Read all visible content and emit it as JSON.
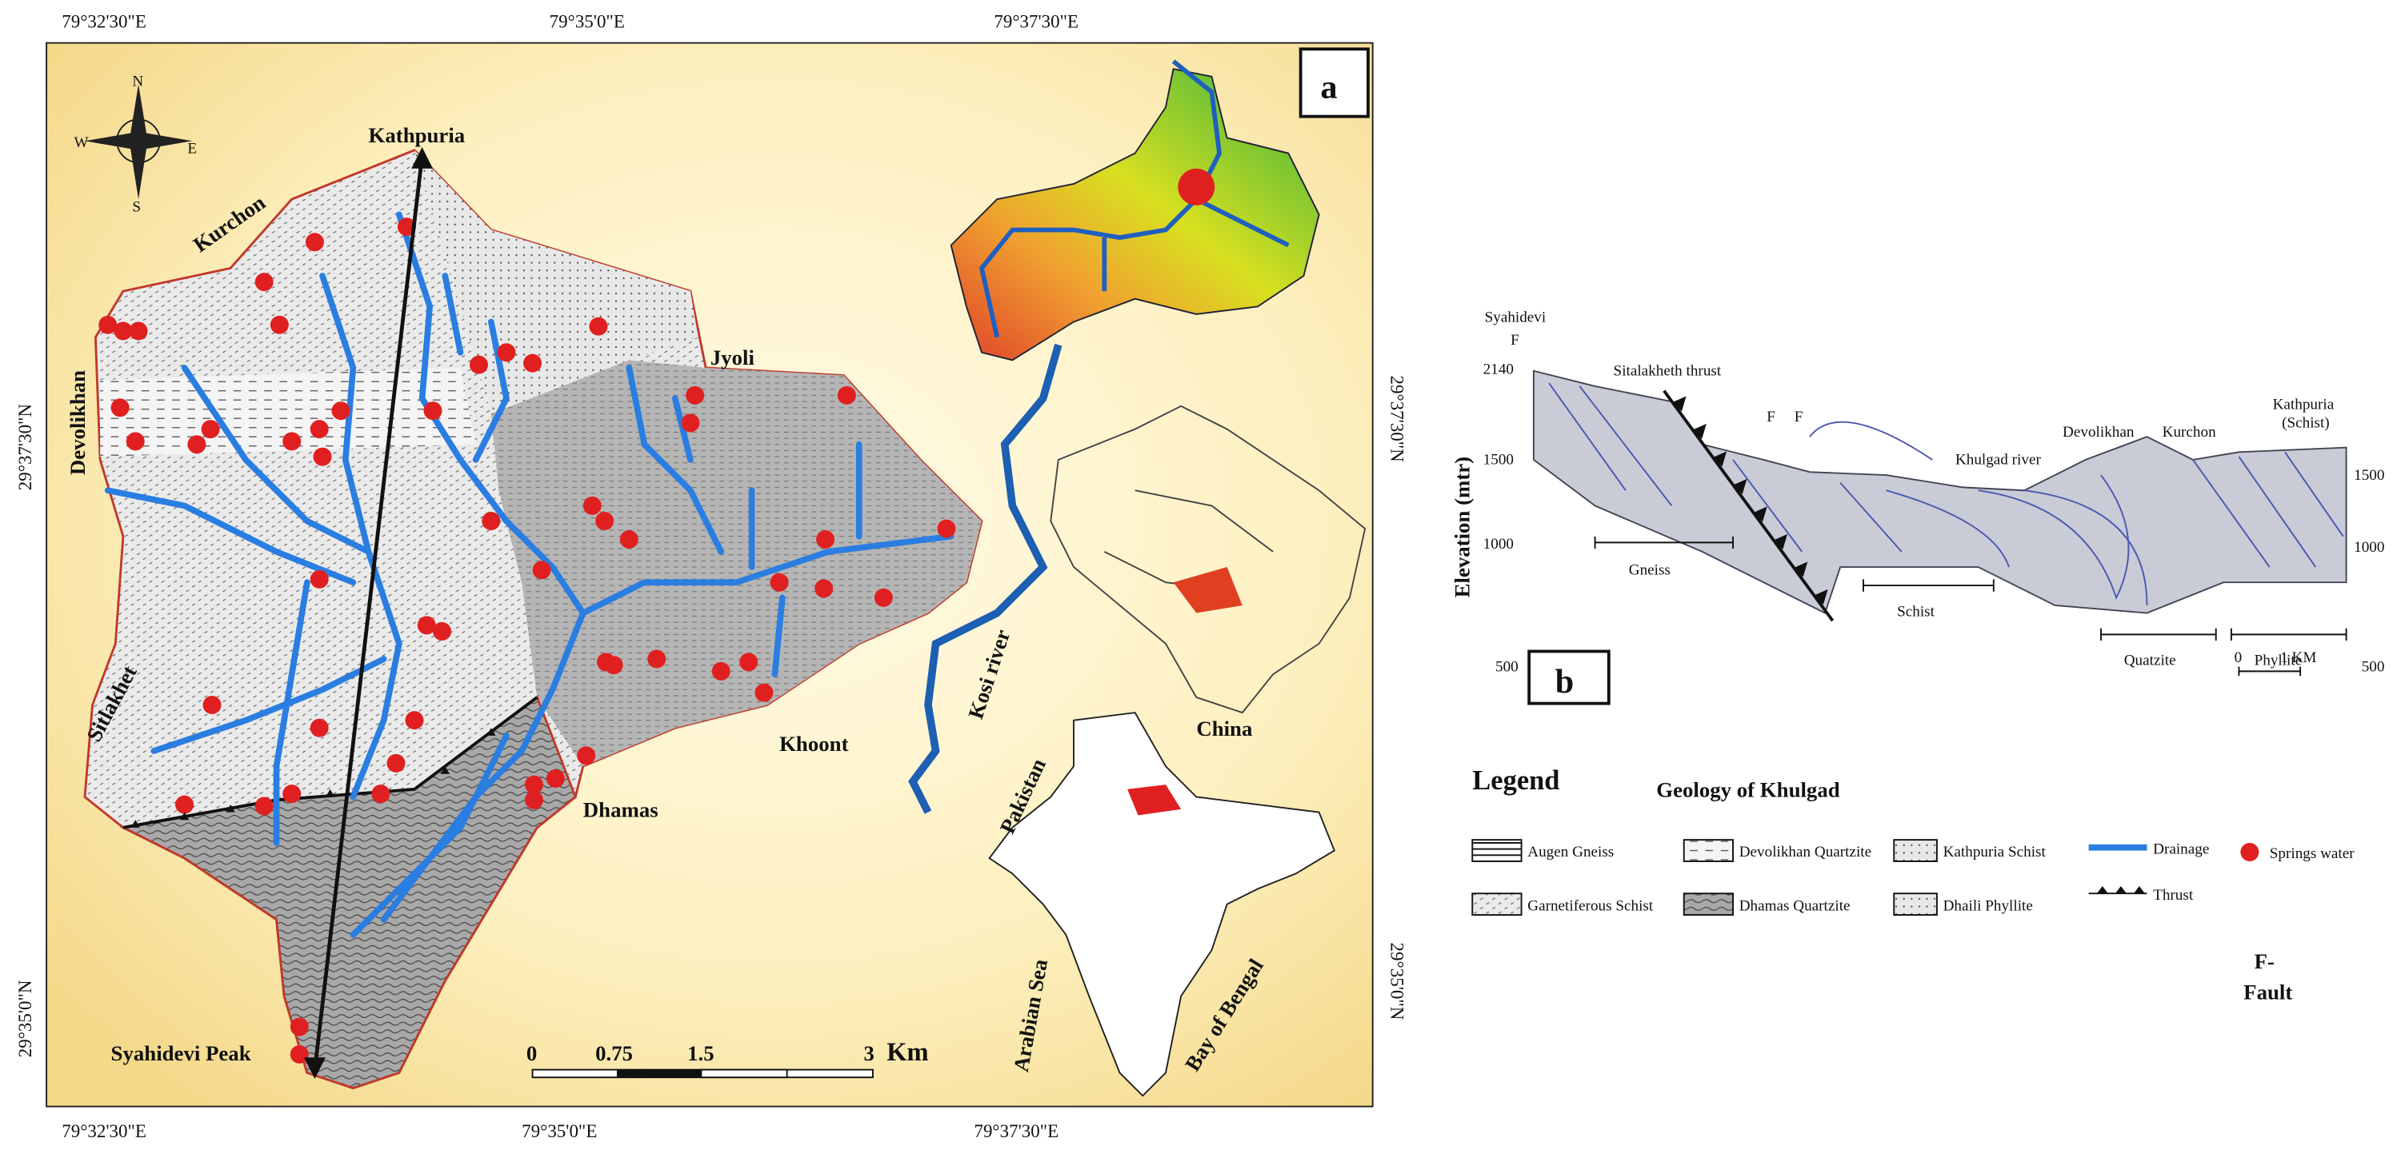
{
  "panel_a": {
    "label": "a",
    "coords_top": [
      "79°32'30\"E",
      "79°35'0\"E",
      "79°37'30\"E"
    ],
    "coords_bottom": [
      "79°32'30\"E",
      "79°35'0\"E",
      "79°37'30\"E"
    ],
    "coords_left": [
      "29°37'30\"N",
      "29°35'0\"N"
    ],
    "coords_right": [
      "29°37'30\"N",
      "29°35'0\"N"
    ],
    "compass": [
      "N",
      "E",
      "S",
      "W"
    ],
    "places": [
      "Kathpuria",
      "Kurchon",
      "Devolikhan",
      "Jyoli",
      "Sitlakhet",
      "Khoont",
      "Dhamas",
      "Syahidevi Peak",
      "Kosi river",
      "China",
      "Pakistan",
      "Arabian Sea",
      "Bay of Bengal"
    ],
    "scale": [
      "0",
      "0.75",
      "1.5",
      "3",
      "Km"
    ]
  },
  "panel_b": {
    "label": "b",
    "axis_label": "Elevation (mtr)",
    "left_ticks": [
      "2140",
      "1500",
      "1000",
      "500"
    ],
    "right_ticks": [
      "1500",
      "1000",
      "500"
    ],
    "labels": [
      "Syahidevi",
      "F",
      "Sitalakheth thrust",
      "F",
      "F",
      "Khulgad river",
      "Devolikhan",
      "Kurchon",
      "Kathpuria",
      "(Schist)"
    ],
    "units": [
      "Gneiss",
      "Schist",
      "Quatzite",
      "Phyllite"
    ],
    "scale": [
      "0",
      "1 KM"
    ]
  },
  "legend": {
    "title": "Legend",
    "subtitle": "Geology of Khulgad",
    "items": [
      "Augen Gneiss",
      "Devolikhan Quartzite",
      "Kathpuria Schist",
      "Drainage",
      "Springs water",
      "Garnetiferous Schist",
      "Dhamas Quartzite",
      "Dhaili Phyllite",
      "Thrust"
    ],
    "fault": [
      "F-",
      "Fault"
    ]
  }
}
